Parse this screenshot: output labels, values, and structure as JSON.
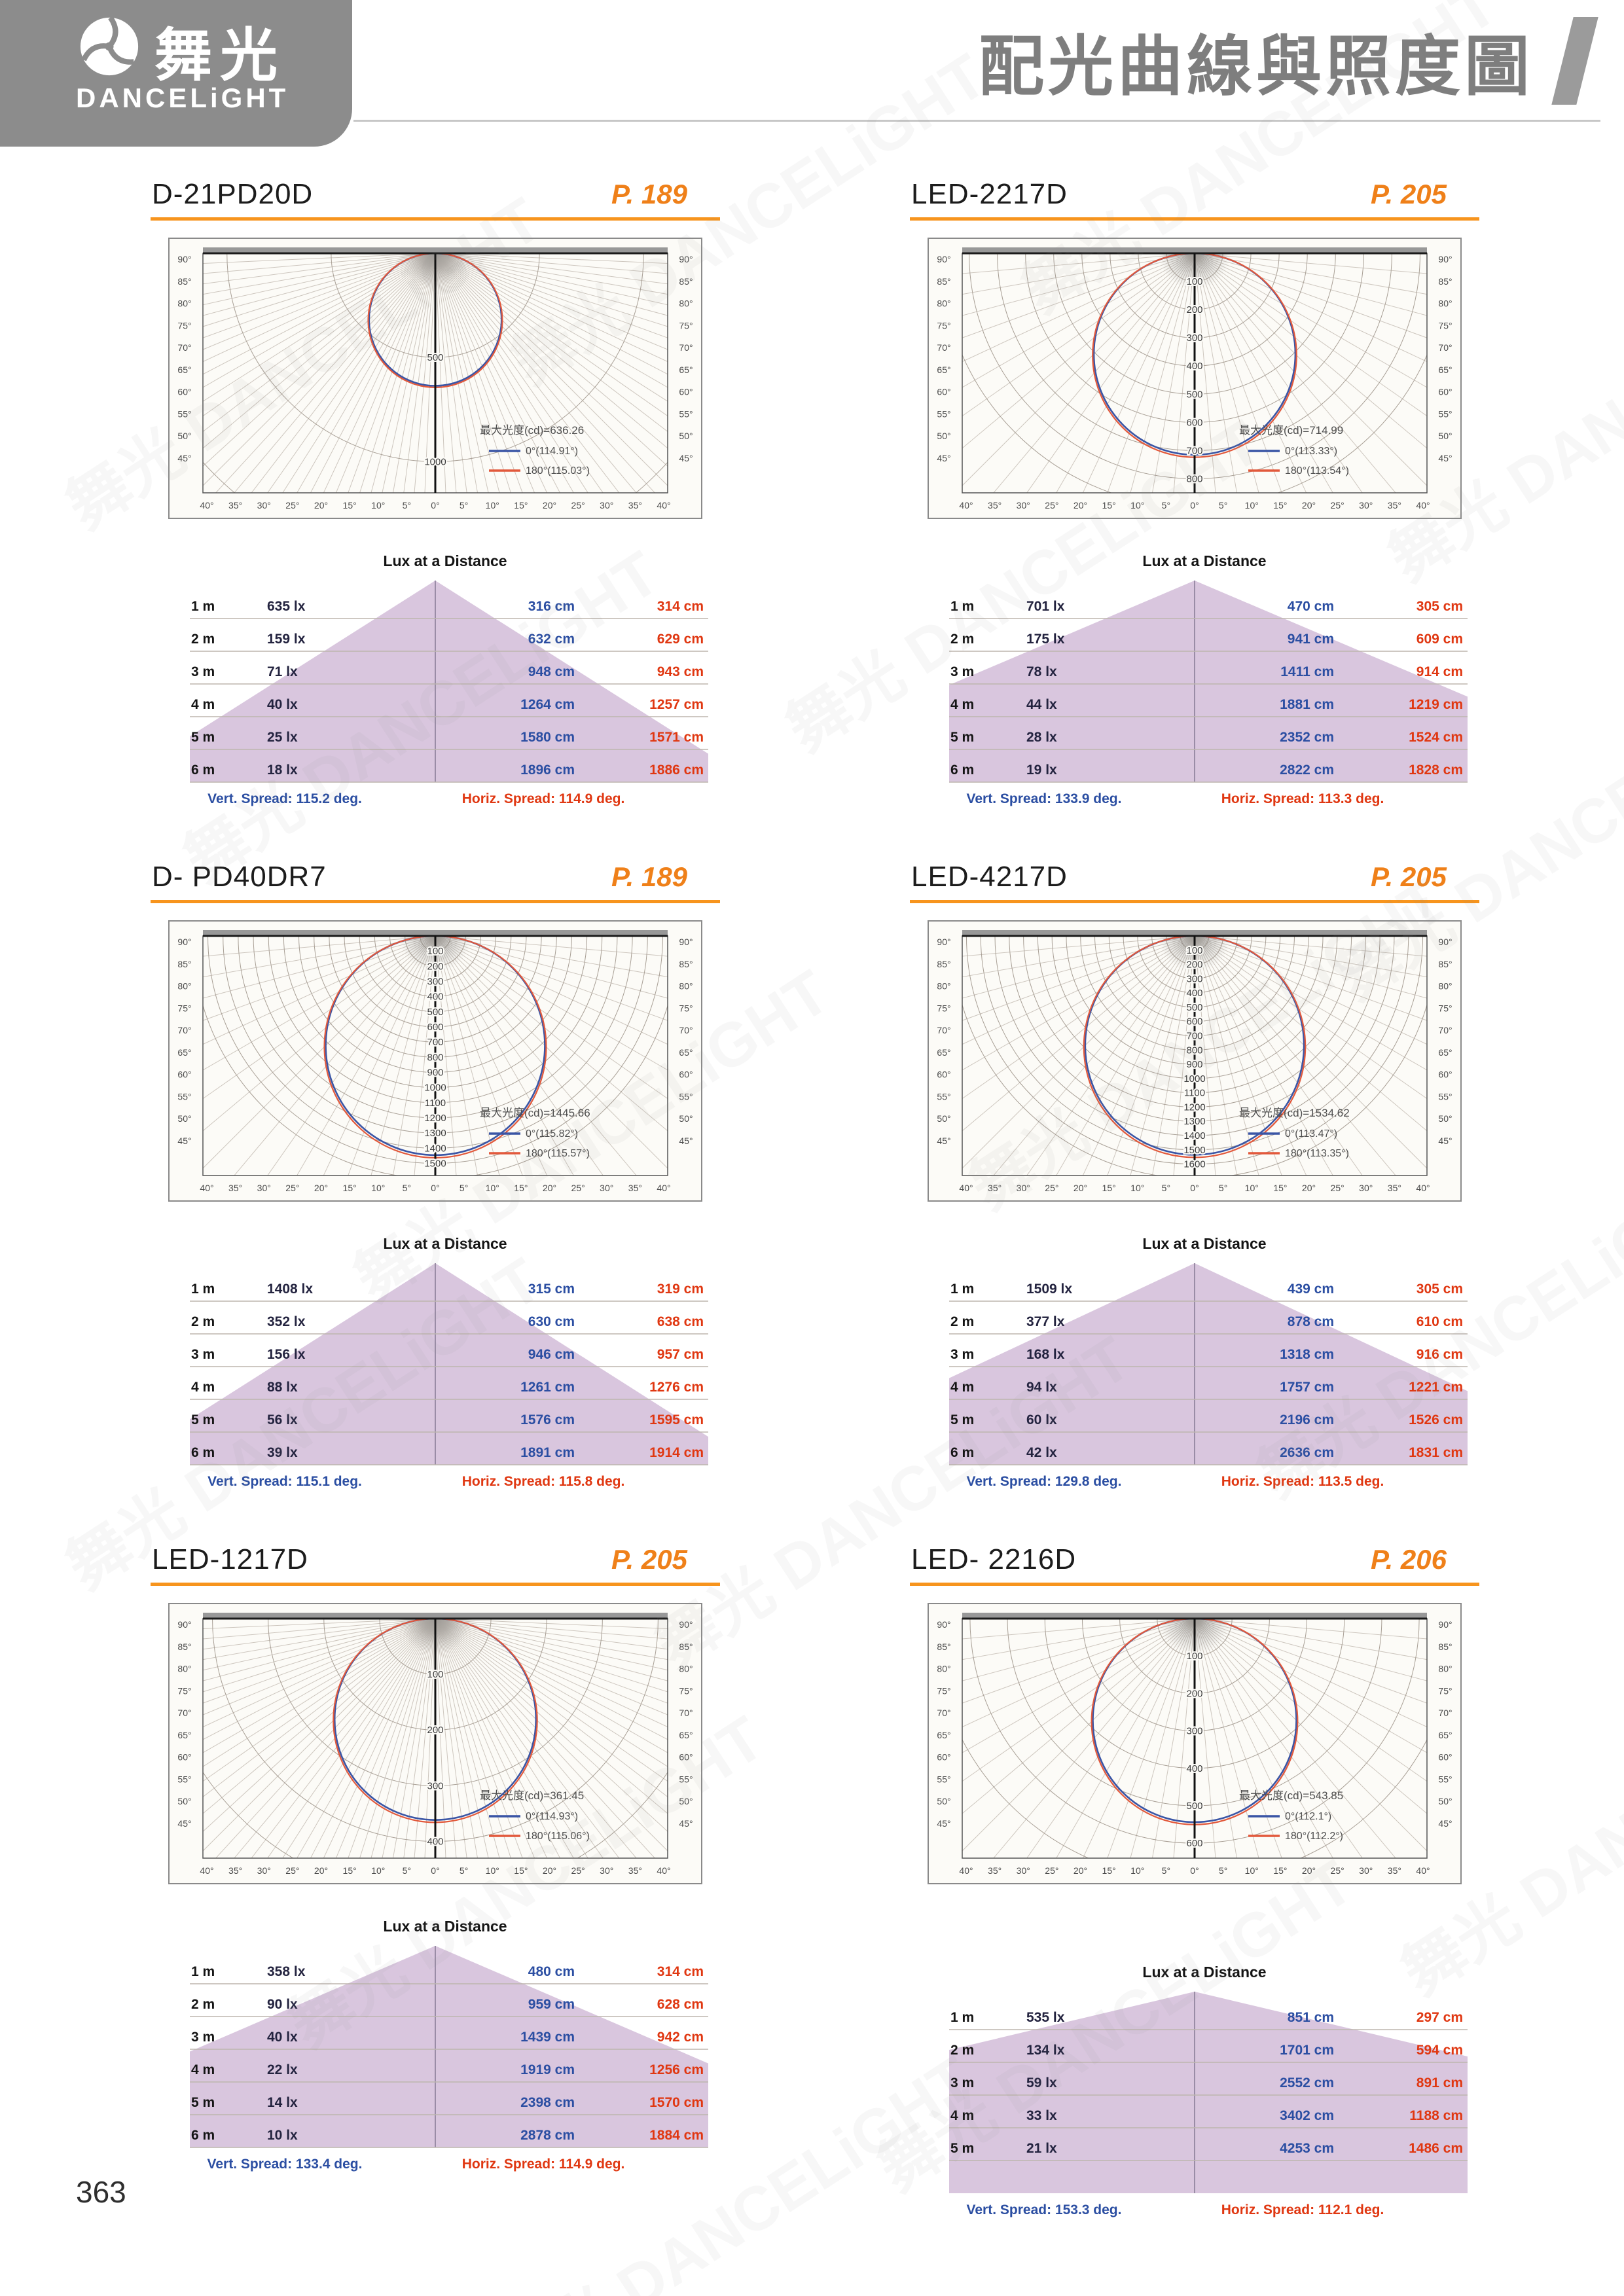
{
  "header": {
    "logo": {
      "brand_zh": "舞光",
      "brand_en": "DANCELiGHT"
    },
    "title": "配光曲線與照度圖"
  },
  "watermark_text": "舞光 DANCELiGHT",
  "page_number": "363",
  "colors": {
    "accent_orange": "#EF8019",
    "rule_orange": "#F7941D",
    "curve_blue": "#3A55A5",
    "curve_red": "#E2593C",
    "text_blue": "#2B4EA2",
    "text_red": "#E03711",
    "beam_lavender": "#D9C6DE",
    "logo_gray": "#8C8C8C",
    "title_gray": "#7E7E7E"
  },
  "lux_common": {
    "title": "Lux at a Distance"
  },
  "polar_common": {
    "side_angle_labels": [
      "90°",
      "85°",
      "80°",
      "75°",
      "70°",
      "65°",
      "60°",
      "55°",
      "50°",
      "45°"
    ],
    "bottom_angle_labels": [
      "40°",
      "35°",
      "30°",
      "25°",
      "20°",
      "15°",
      "10°",
      "5°",
      "0°",
      "5°",
      "10°",
      "15°",
      "20°",
      "25°",
      "30°",
      "35°",
      "40°"
    ]
  },
  "panels": [
    {
      "model": "D-21PD20D",
      "page_ref": "P. 189",
      "polar": {
        "max_cd_label": "最大光度(cd)=636.26",
        "max_cd": 636.26,
        "axis_max": 1150,
        "rings": [
          500,
          1000
        ],
        "fan_step_deg": 2.5,
        "series": [
          {
            "label": "0°(114.91°)",
            "color": "#3A55A5"
          },
          {
            "label": "180°(115.03°)",
            "color": "#E2593C"
          }
        ]
      },
      "lux": {
        "rows": [
          {
            "d": "1 m",
            "lux": "635 lx",
            "v": "316 cm",
            "h": "314 cm"
          },
          {
            "d": "2 m",
            "lux": "159 lx",
            "v": "632 cm",
            "h": "629 cm"
          },
          {
            "d": "3 m",
            "lux": "71 lx",
            "v": "948 cm",
            "h": "943 cm"
          },
          {
            "d": "4 m",
            "lux": "40 lx",
            "v": "1264 cm",
            "h": "1257 cm"
          },
          {
            "d": "5 m",
            "lux": "25 lx",
            "v": "1580 cm",
            "h": "1571 cm"
          },
          {
            "d": "6 m",
            "lux": "18 lx",
            "v": "1896 cm",
            "h": "1886 cm"
          }
        ],
        "vert_spread": "Vert. Spread: 115.2 deg.",
        "horiz_spread": "Horiz. Spread: 114.9 deg.",
        "vert_spread_deg": 115.2
      }
    },
    {
      "model": "LED-2217D",
      "page_ref": "P. 205",
      "polar": {
        "max_cd_label": "最大光度(cd)=714.99",
        "max_cd": 714.99,
        "axis_max": 850,
        "rings": [
          100,
          200,
          300,
          400,
          500,
          600,
          700,
          800
        ],
        "fan_step_deg": 5,
        "series": [
          {
            "label": "0°(113.33°)",
            "color": "#3A55A5"
          },
          {
            "label": "180°(113.54°)",
            "color": "#E2593C"
          }
        ]
      },
      "lux": {
        "rows": [
          {
            "d": "1 m",
            "lux": "701 lx",
            "v": "470 cm",
            "h": "305 cm"
          },
          {
            "d": "2 m",
            "lux": "175 lx",
            "v": "941 cm",
            "h": "609 cm"
          },
          {
            "d": "3 m",
            "lux": "78 lx",
            "v": "1411 cm",
            "h": "914 cm"
          },
          {
            "d": "4 m",
            "lux": "44 lx",
            "v": "1881 cm",
            "h": "1219 cm"
          },
          {
            "d": "5 m",
            "lux": "28 lx",
            "v": "2352 cm",
            "h": "1524 cm"
          },
          {
            "d": "6 m",
            "lux": "19 lx",
            "v": "2822 cm",
            "h": "1828 cm"
          }
        ],
        "vert_spread": "Vert. Spread: 133.9 deg.",
        "horiz_spread": "Horiz. Spread: 113.3 deg.",
        "vert_spread_deg": 133.9
      }
    },
    {
      "model": "D- PD40DR7",
      "page_ref": "P. 189",
      "polar": {
        "max_cd_label": "最大光度(cd)=1445.66",
        "max_cd": 1445.66,
        "axis_max": 1580,
        "rings": [
          100,
          200,
          300,
          400,
          500,
          600,
          700,
          800,
          900,
          1000,
          1100,
          1200,
          1300,
          1400,
          1500
        ],
        "fan_step_deg": 5,
        "series": [
          {
            "label": "0°(115.82°)",
            "color": "#3A55A5"
          },
          {
            "label": "180°(115.57°)",
            "color": "#E2593C"
          }
        ]
      },
      "lux": {
        "rows": [
          {
            "d": "1 m",
            "lux": "1408 lx",
            "v": "315 cm",
            "h": "319 cm"
          },
          {
            "d": "2 m",
            "lux": "352 lx",
            "v": "630 cm",
            "h": "638 cm"
          },
          {
            "d": "3 m",
            "lux": "156 lx",
            "v": "946 cm",
            "h": "957 cm"
          },
          {
            "d": "4 m",
            "lux": "88 lx",
            "v": "1261 cm",
            "h": "1276 cm"
          },
          {
            "d": "5 m",
            "lux": "56 lx",
            "v": "1576 cm",
            "h": "1595 cm"
          },
          {
            "d": "6 m",
            "lux": "39 lx",
            "v": "1891 cm",
            "h": "1914 cm"
          }
        ],
        "vert_spread": "Vert. Spread: 115.1 deg.",
        "horiz_spread": "Horiz. Spread: 115.8 deg.",
        "vert_spread_deg": 115.1
      }
    },
    {
      "model": "LED-4217D",
      "page_ref": "P. 205",
      "polar": {
        "max_cd_label": "最大光度(cd)=1534.62",
        "max_cd": 1534.62,
        "axis_max": 1680,
        "rings": [
          100,
          200,
          300,
          400,
          500,
          600,
          700,
          800,
          900,
          1000,
          1100,
          1200,
          1300,
          1400,
          1500,
          1600
        ],
        "fan_step_deg": 5,
        "series": [
          {
            "label": "0°(113.47°)",
            "color": "#3A55A5"
          },
          {
            "label": "180°(113.35°)",
            "color": "#E2593C"
          }
        ]
      },
      "lux": {
        "rows": [
          {
            "d": "1 m",
            "lux": "1509 lx",
            "v": "439 cm",
            "h": "305 cm"
          },
          {
            "d": "2 m",
            "lux": "377 lx",
            "v": "878 cm",
            "h": "610 cm"
          },
          {
            "d": "3 m",
            "lux": "168 lx",
            "v": "1318 cm",
            "h": "916 cm"
          },
          {
            "d": "4 m",
            "lux": "94 lx",
            "v": "1757 cm",
            "h": "1221 cm"
          },
          {
            "d": "5 m",
            "lux": "60 lx",
            "v": "2196 cm",
            "h": "1526 cm"
          },
          {
            "d": "6 m",
            "lux": "42 lx",
            "v": "2636 cm",
            "h": "1831 cm"
          }
        ],
        "vert_spread": "Vert. Spread: 129.8 deg.",
        "horiz_spread": "Horiz. Spread: 113.5 deg.",
        "vert_spread_deg": 129.8
      }
    },
    {
      "model": "LED-1217D",
      "page_ref": "P. 205",
      "polar": {
        "max_cd_label": "最大光度(cd)=361.45",
        "max_cd": 361.45,
        "axis_max": 430,
        "rings": [
          100,
          200,
          300,
          400
        ],
        "fan_step_deg": 2.5,
        "series": [
          {
            "label": "0°(114.93°)",
            "color": "#3A55A5"
          },
          {
            "label": "180°(115.06°)",
            "color": "#E2593C"
          }
        ]
      },
      "lux": {
        "rows": [
          {
            "d": "1 m",
            "lux": "358 lx",
            "v": "480 cm",
            "h": "314 cm"
          },
          {
            "d": "2 m",
            "lux": "90 lx",
            "v": "959 cm",
            "h": "628 cm"
          },
          {
            "d": "3 m",
            "lux": "40 lx",
            "v": "1439 cm",
            "h": "942 cm"
          },
          {
            "d": "4 m",
            "lux": "22 lx",
            "v": "1919 cm",
            "h": "1256 cm"
          },
          {
            "d": "5 m",
            "lux": "14 lx",
            "v": "2398 cm",
            "h": "1570 cm"
          },
          {
            "d": "6 m",
            "lux": "10 lx",
            "v": "2878 cm",
            "h": "1884 cm"
          }
        ],
        "vert_spread": "Vert. Spread: 133.4 deg.",
        "horiz_spread": "Horiz. Spread: 114.9 deg.",
        "vert_spread_deg": 133.4
      }
    },
    {
      "model": "LED- 2216D",
      "page_ref": "P. 206",
      "polar": {
        "max_cd_label": "最大光度(cd)=543.85",
        "max_cd": 543.85,
        "axis_max": 640,
        "rings": [
          100,
          200,
          300,
          400,
          500,
          600
        ],
        "fan_step_deg": 5,
        "series": [
          {
            "label": "0°(112.1°)",
            "color": "#3A55A5"
          },
          {
            "label": "180°(112.2°)",
            "color": "#E2593C"
          }
        ]
      },
      "lux": {
        "rows": [
          {
            "d": "1 m",
            "lux": "535 lx",
            "v": "851 cm",
            "h": "297 cm"
          },
          {
            "d": "2 m",
            "lux": "134 lx",
            "v": "1701 cm",
            "h": "594 cm"
          },
          {
            "d": "3 m",
            "lux": "59 lx",
            "v": "2552 cm",
            "h": "891 cm"
          },
          {
            "d": "4 m",
            "lux": "33 lx",
            "v": "3402 cm",
            "h": "1188 cm"
          },
          {
            "d": "5 m",
            "lux": "21 lx",
            "v": "4253 cm",
            "h": "1486 cm"
          }
        ],
        "vert_spread": "Vert. Spread: 153.3 deg.",
        "horiz_spread": "Horiz. Spread: 112.1 deg.",
        "vert_spread_deg": 153.3
      }
    }
  ]
}
